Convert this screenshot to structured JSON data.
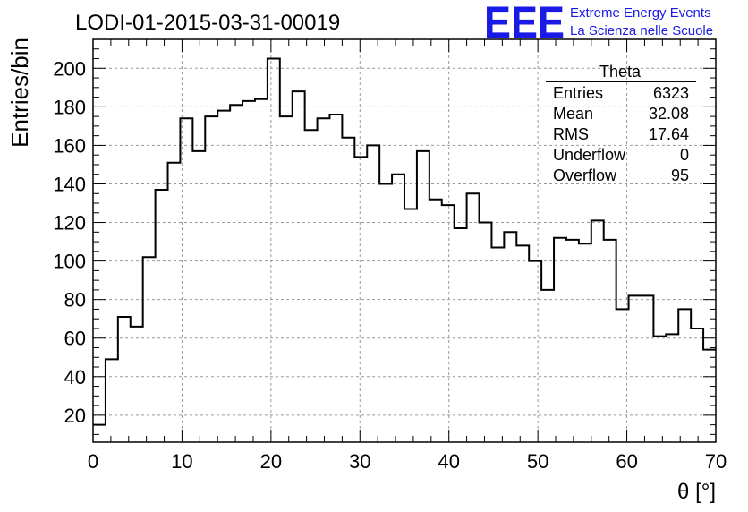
{
  "chart_data": {
    "type": "histogram",
    "title": "LODI-01-2015-03-31-00019",
    "xlabel": "θ [°]",
    "ylabel": "Entries/bin",
    "xlim": [
      0,
      70
    ],
    "ylim": [
      6,
      215
    ],
    "bin_width": 1.4,
    "x_ticks": [
      0,
      10,
      20,
      30,
      40,
      50,
      60,
      70
    ],
    "y_ticks": [
      20,
      40,
      60,
      80,
      100,
      120,
      140,
      160,
      180,
      200
    ],
    "grid": true,
    "values": [
      15,
      49,
      71,
      66,
      102,
      137,
      151,
      174,
      157,
      175,
      178,
      181,
      183,
      184,
      205,
      175,
      188,
      168,
      174,
      176,
      164,
      154,
      160,
      140,
      145,
      127,
      157,
      132,
      129,
      117,
      135,
      120,
      107,
      115,
      108,
      100,
      85,
      112,
      111,
      109,
      121,
      111,
      75,
      82,
      82,
      61,
      62,
      75,
      65,
      54
    ],
    "stats_box": {
      "title": "Theta",
      "rows": [
        {
          "label": "Entries",
          "value": "6323"
        },
        {
          "label": "Mean",
          "value": "32.08"
        },
        {
          "label": "RMS",
          "value": "17.64"
        },
        {
          "label": "Underflow",
          "value": "0"
        },
        {
          "label": "Overflow",
          "value": "95"
        }
      ]
    }
  },
  "logo": {
    "mark": "EEE",
    "line1": "Extreme Energy Events",
    "line2": "La Scienza nelle Scuole",
    "color": "#1a1ae6"
  }
}
